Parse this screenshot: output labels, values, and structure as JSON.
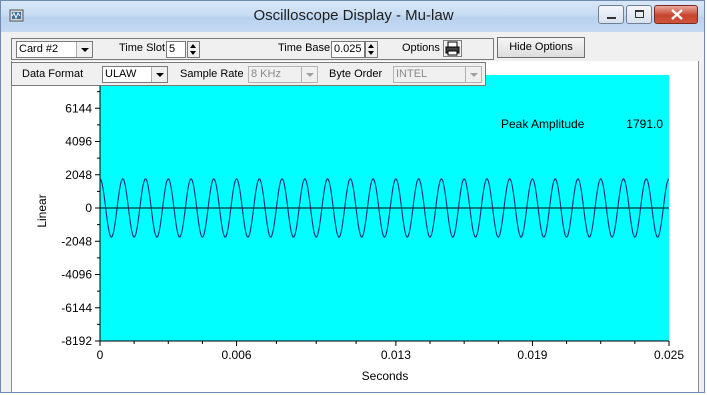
{
  "window": {
    "title": "Oscilloscope Display - Mu-law"
  },
  "toolbar1": {
    "card": "Card #2",
    "time_slot_label": "Time Slot",
    "time_slot_value": "5",
    "time_base_label": "Time Base",
    "time_base_value": "0.025",
    "options_label": "Options",
    "hide_options_label": "Hide Options"
  },
  "toolbar2": {
    "data_format_label": "Data Format",
    "data_format_value": "ULAW",
    "sample_rate_label": "Sample Rate",
    "sample_rate_value": "8 KHz",
    "byte_order_label": "Byte Order",
    "byte_order_value": "INTEL"
  },
  "readout": {
    "peak_label": "Peak Amplitude",
    "peak_value": "1791.0"
  },
  "icons": {
    "app": "oscilloscope-app-icon",
    "print": "printer-icon",
    "minimize": "minimize-icon",
    "maximize": "maximize-icon",
    "close": "close-icon"
  },
  "colors": {
    "plot_bg": "#00ffff",
    "trace": "#1a2a7a",
    "title_bar": "#c7dcf3",
    "close_button": "#c7442e"
  },
  "chart_data": {
    "type": "line",
    "title": "",
    "xlabel": "Seconds",
    "ylabel": "Linear",
    "xlim": [
      0,
      0.025
    ],
    "ylim": [
      -8192,
      8192
    ],
    "x_ticks": [
      "0",
      "0.006",
      "0.013",
      "0.019",
      "0.025"
    ],
    "y_ticks": [
      "6144",
      "4096",
      "2048",
      "0",
      "-2048",
      "-4096",
      "-6144",
      "-8192"
    ],
    "y_tick_values": [
      6144,
      4096,
      2048,
      0,
      -2048,
      -4096,
      -6144,
      -8192
    ],
    "x_tick_values": [
      0,
      0.006,
      0.013,
      0.019,
      0.025
    ],
    "series": [
      {
        "amplitude": 1791,
        "frequency_hz": 1000,
        "duration_s": 0.025
      }
    ],
    "grid": false
  }
}
